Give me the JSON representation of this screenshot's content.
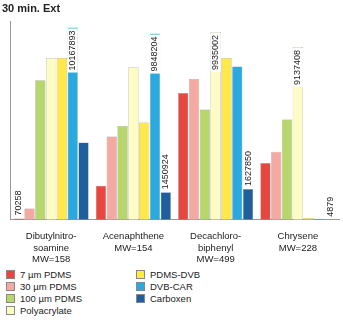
{
  "chart_data": {
    "type": "bar",
    "title": "30 min. Ext",
    "categories": [
      [
        "Dibutylnitro-",
        "soamine",
        "MW=158"
      ],
      [
        "Acenaphthene",
        "MW=154"
      ],
      [
        "Decachloro-",
        "biphenyl",
        "MW=499"
      ],
      [
        "Chrysene",
        "MW=228"
      ]
    ],
    "series": [
      {
        "name": "7 µm PDMS",
        "color": "#e8473f",
        "values": [
          70258,
          1800000,
          6700000,
          3000000
        ],
        "value_labels": [
          "70258",
          null,
          null,
          null
        ]
      },
      {
        "name": "30 µm PDMS",
        "color": "#f4a9a2",
        "values": [
          600000,
          4400000,
          7440000,
          3600000
        ],
        "value_labels": [
          null,
          null,
          null,
          null
        ]
      },
      {
        "name": "100 µm PDMS",
        "color": "#b7d66b",
        "values": [
          7380000,
          4960000,
          5830000,
          5300000
        ],
        "value_labels": [
          null,
          null,
          null,
          null
        ]
      },
      {
        "name": "Polyacrylate",
        "color": "#fdfcc4",
        "values": [
          8550000,
          8060000,
          9935002,
          9137408
        ],
        "value_labels": [
          null,
          null,
          "9935002",
          "9137408"
        ]
      },
      {
        "name": "PDMS-DVB",
        "color": "#ffe84a",
        "values": [
          8550000,
          5150000,
          8550000,
          100000
        ],
        "value_labels": [
          null,
          null,
          null,
          null
        ]
      },
      {
        "name": "DVB-CAR",
        "color": "#2aa9e0",
        "values": [
          10167893,
          9848204,
          8100000,
          60000
        ],
        "value_labels": [
          "10167893",
          "9848204",
          null,
          null
        ]
      },
      {
        "name": "Carboxen",
        "color": "#1f5f9e",
        "values": [
          4090000,
          1450924,
          1627850,
          4879
        ],
        "value_labels": [
          null,
          "1450924",
          "1627850",
          "4879"
        ]
      }
    ],
    "ylim": [
      0,
      10500000
    ],
    "tick_labels": "x",
    "grid": false,
    "legend": "bottom",
    "data_labels": true
  }
}
